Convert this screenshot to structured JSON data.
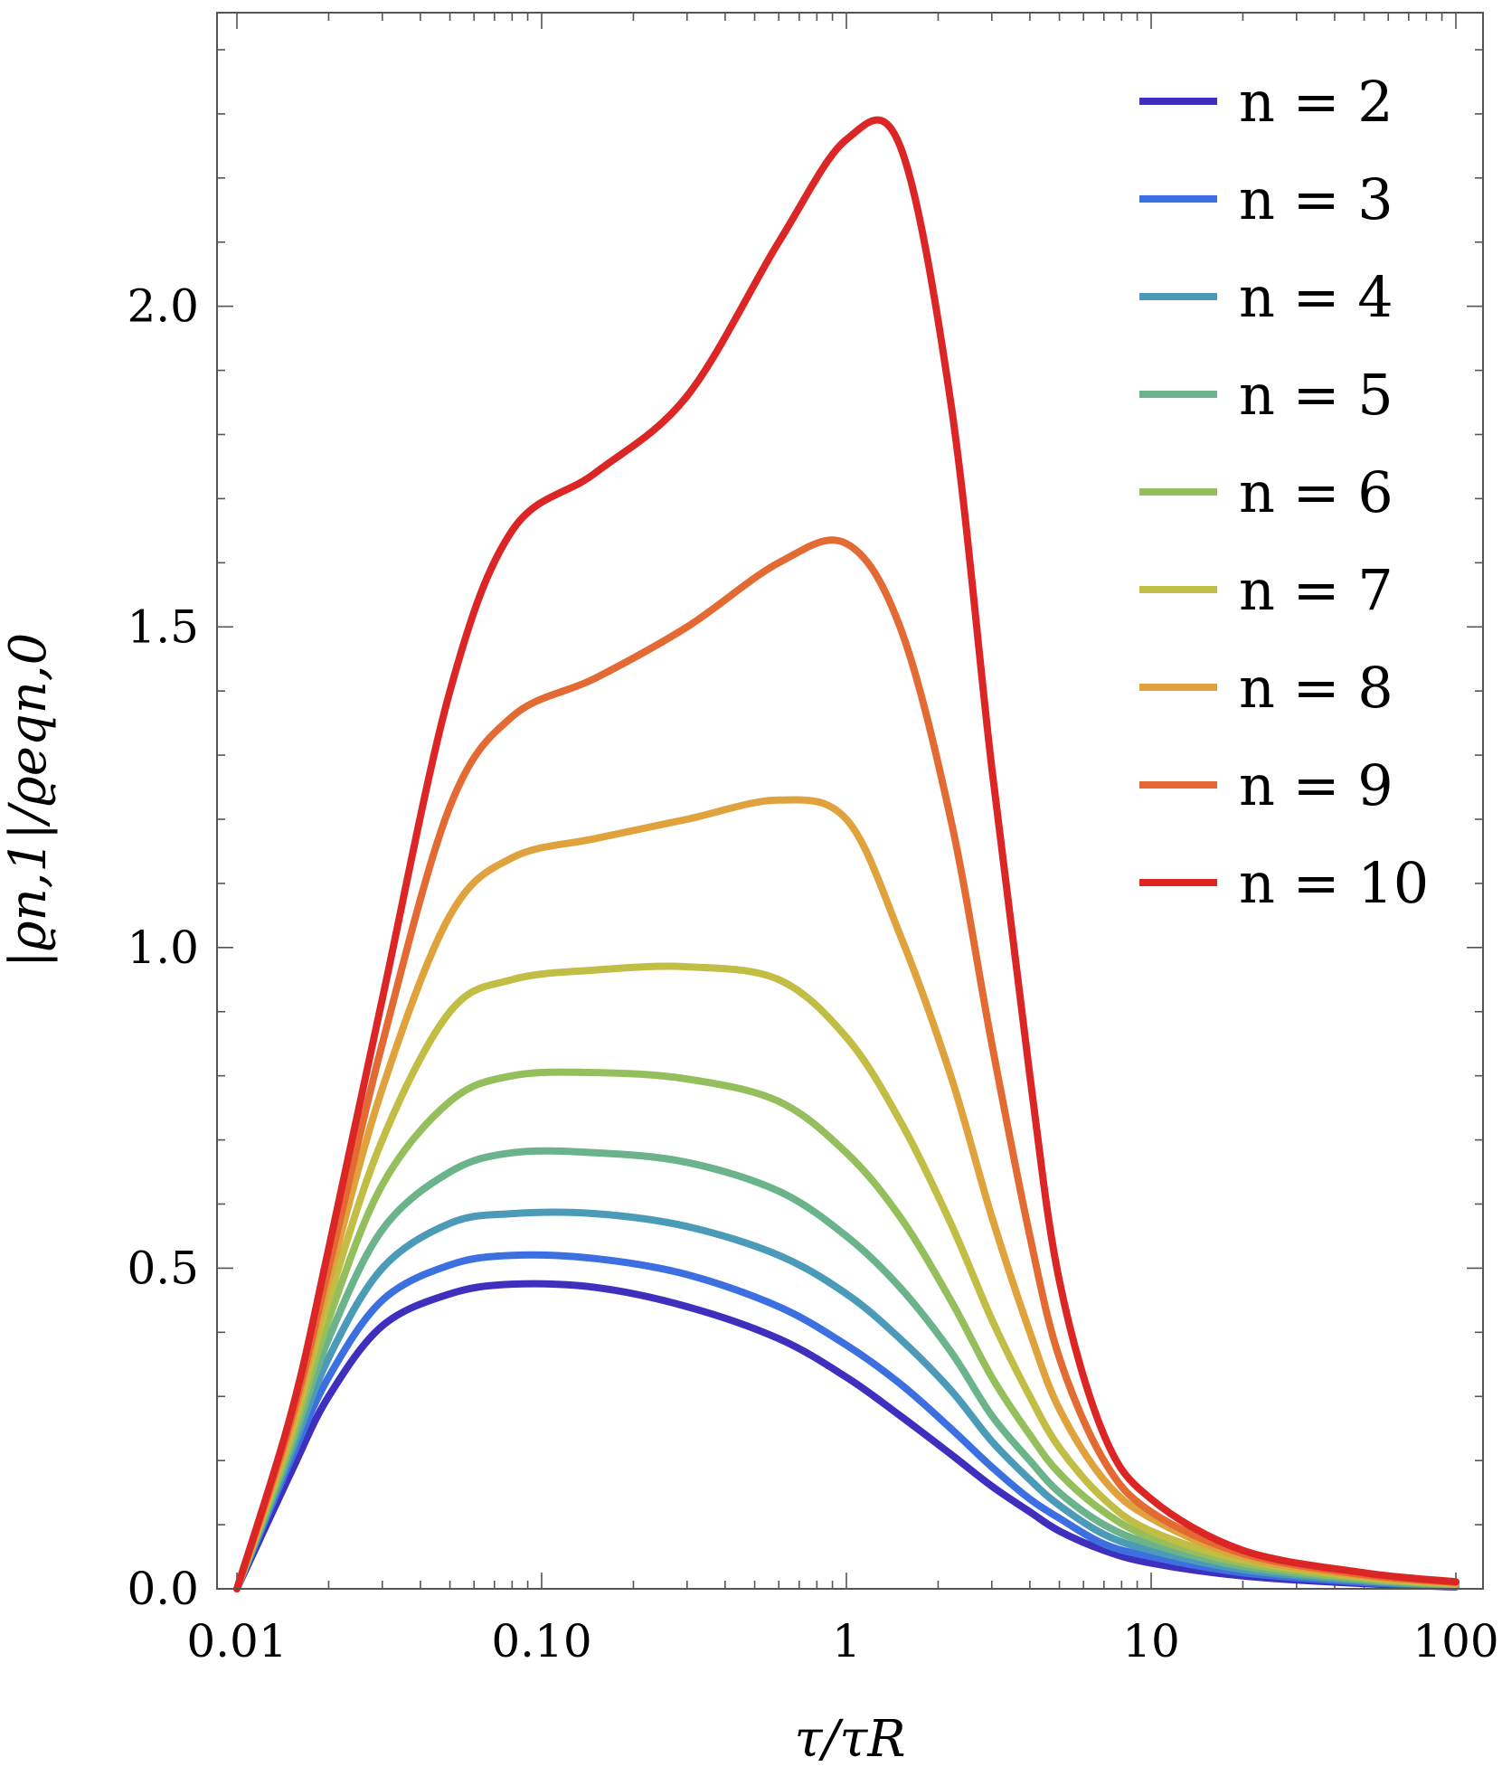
{
  "chart_data": {
    "type": "line",
    "xlabel": "τ/τR",
    "ylabel": "|ϱn,1|/ϱeqn,0",
    "xscale": "log",
    "xlim": [
      0.01,
      100
    ],
    "ylim": [
      0,
      2.4
    ],
    "xticks": [
      0.01,
      0.1,
      1,
      10,
      100
    ],
    "xtick_labels": [
      "0.01",
      "0.10",
      "1",
      "10",
      "100"
    ],
    "yticks": [
      0,
      0.5,
      1,
      1.5,
      2
    ],
    "ytick_labels": [
      "0.0",
      "0.5",
      "1.0",
      "1.5",
      "2.0"
    ],
    "grid": false,
    "legend_position": "top-right",
    "x": [
      0.01,
      0.015,
      0.02,
      0.03,
      0.05,
      0.08,
      0.15,
      0.3,
      0.6,
      1,
      1.5,
      2.2,
      3,
      4,
      5,
      7,
      10,
      20,
      50,
      100
    ],
    "series": [
      {
        "name": "n = 2",
        "color": "#3f2fbf",
        "values": [
          0,
          0.18,
          0.3,
          0.41,
          0.46,
          0.475,
          0.47,
          0.44,
          0.39,
          0.33,
          0.27,
          0.21,
          0.16,
          0.12,
          0.09,
          0.06,
          0.04,
          0.02,
          0.008,
          0.003
        ]
      },
      {
        "name": "n = 3",
        "color": "#3c6fe0",
        "values": [
          0,
          0.2,
          0.33,
          0.45,
          0.505,
          0.52,
          0.515,
          0.49,
          0.44,
          0.38,
          0.32,
          0.25,
          0.19,
          0.14,
          0.11,
          0.07,
          0.05,
          0.025,
          0.01,
          0.004
        ]
      },
      {
        "name": "n = 4",
        "color": "#4b9bb8",
        "values": [
          0,
          0.21,
          0.36,
          0.5,
          0.57,
          0.585,
          0.585,
          0.565,
          0.52,
          0.46,
          0.39,
          0.31,
          0.23,
          0.17,
          0.13,
          0.085,
          0.06,
          0.03,
          0.012,
          0.005
        ]
      },
      {
        "name": "n = 5",
        "color": "#6bb38a",
        "values": [
          0,
          0.22,
          0.39,
          0.56,
          0.65,
          0.68,
          0.68,
          0.665,
          0.62,
          0.55,
          0.47,
          0.37,
          0.27,
          0.2,
          0.15,
          0.1,
          0.07,
          0.035,
          0.014,
          0.006
        ]
      },
      {
        "name": "n = 6",
        "color": "#94bf5c",
        "values": [
          0,
          0.23,
          0.42,
          0.63,
          0.76,
          0.8,
          0.805,
          0.795,
          0.76,
          0.68,
          0.58,
          0.45,
          0.33,
          0.24,
          0.18,
          0.12,
          0.08,
          0.04,
          0.016,
          0.007
        ]
      },
      {
        "name": "n = 7",
        "color": "#c2bd44",
        "values": [
          0,
          0.24,
          0.45,
          0.7,
          0.9,
          0.95,
          0.965,
          0.97,
          0.95,
          0.86,
          0.73,
          0.57,
          0.42,
          0.3,
          0.22,
          0.14,
          0.09,
          0.045,
          0.018,
          0.008
        ]
      },
      {
        "name": "n = 8",
        "color": "#e0a23c",
        "values": [
          0,
          0.25,
          0.48,
          0.78,
          1.05,
          1.14,
          1.17,
          1.2,
          1.23,
          1.2,
          1.02,
          0.8,
          0.58,
          0.4,
          0.28,
          0.17,
          0.11,
          0.05,
          0.02,
          0.009
        ]
      },
      {
        "name": "n = 9",
        "color": "#e46a34",
        "values": [
          0,
          0.26,
          0.5,
          0.85,
          1.22,
          1.36,
          1.42,
          1.5,
          1.6,
          1.63,
          1.5,
          1.2,
          0.85,
          0.55,
          0.36,
          0.2,
          0.12,
          0.055,
          0.022,
          0.01
        ]
      },
      {
        "name": "n = 10",
        "color": "#dc2626",
        "values": [
          0,
          0.27,
          0.53,
          0.92,
          1.4,
          1.65,
          1.74,
          1.86,
          2.1,
          2.26,
          2.25,
          1.85,
          1.28,
          0.8,
          0.48,
          0.24,
          0.14,
          0.06,
          0.025,
          0.011
        ]
      }
    ]
  }
}
